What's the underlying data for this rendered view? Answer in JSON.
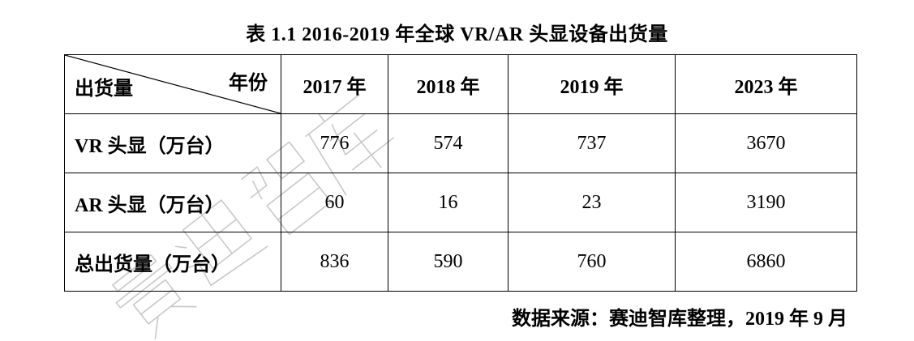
{
  "title": "表 1.1 2016-2019 年全球 VR/AR 头显设备出货量",
  "table": {
    "corner_left": "出货量",
    "corner_right": "年份",
    "years": [
      "2017 年",
      "2018 年",
      "2019 年",
      "2023 年"
    ],
    "rows": [
      {
        "label": "VR 头显（万台）",
        "values": [
          "776",
          "574",
          "737",
          "3670"
        ]
      },
      {
        "label": "AR 头显（万台）",
        "values": [
          "60",
          "16",
          "23",
          "3190"
        ]
      },
      {
        "label": "总出货量（万台）",
        "values": [
          "836",
          "590",
          "760",
          "6860"
        ]
      }
    ]
  },
  "source": "数据来源：赛迪智库整理，2019 年 9 月",
  "watermark": "赛迪智库",
  "colors": {
    "text": "#000000",
    "border": "#000000",
    "watermark_stroke": "#c8c8c8"
  }
}
